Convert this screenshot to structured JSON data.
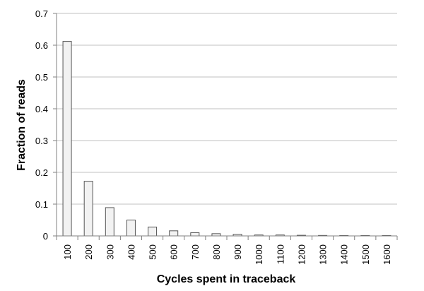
{
  "chart_data": {
    "type": "bar",
    "title": "",
    "xlabel": "Cycles spent in traceback",
    "ylabel": "Fraction of reads",
    "categories": [
      "100",
      "200",
      "300",
      "400",
      "500",
      "600",
      "700",
      "800",
      "900",
      "1000",
      "1100",
      "1200",
      "1300",
      "1400",
      "1500",
      "1600"
    ],
    "values": [
      0.612,
      0.172,
      0.089,
      0.05,
      0.028,
      0.016,
      0.01,
      0.007,
      0.005,
      0.003,
      0.003,
      0.002,
      0.0015,
      0.001,
      0.001,
      0.001
    ],
    "y_ticks": [
      "0",
      "0.1",
      "0.2",
      "0.3",
      "0.4",
      "0.5",
      "0.6",
      "0.7"
    ],
    "ylim": [
      0,
      0.7
    ],
    "grid": true,
    "legend": "none",
    "bar_fill": "#f2f2f2",
    "bar_stroke": "#555555",
    "grid_color": "#c0c0c0",
    "axis_color": "#808080"
  }
}
